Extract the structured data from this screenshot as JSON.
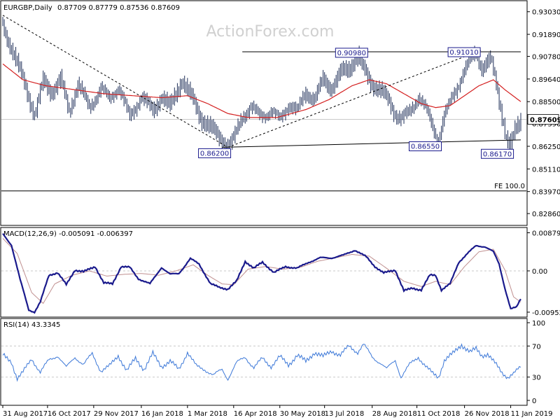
{
  "header": {
    "symbol_text": "EURGBP,Daily",
    "ohlc_text": "0.87709 0.87779 0.87536 0.87609",
    "watermark": "ActionForex.com"
  },
  "chart_data": {
    "type": "line",
    "price_panel": {
      "ylim": [
        0.823,
        0.9355
      ],
      "ticks": [
        "0.93030",
        "0.91890",
        "0.90780",
        "0.89640",
        "0.88500",
        "0.87390",
        "0.86250",
        "0.85110",
        "0.83970",
        "0.82860"
      ],
      "current_price_label": "0.87609",
      "current_price": 0.87609,
      "fe_label": "FE 100.0",
      "fe_level": 0.84,
      "bar_count": 360,
      "close_anchors": [
        [
          0,
          0.923
        ],
        [
          8,
          0.908
        ],
        [
          16,
          0.892
        ],
        [
          22,
          0.878
        ],
        [
          28,
          0.895
        ],
        [
          34,
          0.89
        ],
        [
          40,
          0.896
        ],
        [
          46,
          0.88
        ],
        [
          52,
          0.894
        ],
        [
          60,
          0.882
        ],
        [
          68,
          0.892
        ],
        [
          74,
          0.886
        ],
        [
          80,
          0.893
        ],
        [
          88,
          0.877
        ],
        [
          96,
          0.888
        ],
        [
          104,
          0.88
        ],
        [
          110,
          0.888
        ],
        [
          116,
          0.882
        ],
        [
          124,
          0.896
        ],
        [
          130,
          0.888
        ],
        [
          138,
          0.876
        ],
        [
          146,
          0.87
        ],
        [
          152,
          0.866
        ],
        [
          156,
          0.862
        ],
        [
          160,
          0.866
        ],
        [
          166,
          0.878
        ],
        [
          172,
          0.882
        ],
        [
          178,
          0.878
        ],
        [
          186,
          0.88
        ],
        [
          192,
          0.876
        ],
        [
          198,
          0.884
        ],
        [
          204,
          0.88
        ],
        [
          210,
          0.89
        ],
        [
          216,
          0.886
        ],
        [
          222,
          0.896
        ],
        [
          228,
          0.892
        ],
        [
          234,
          0.899
        ],
        [
          240,
          0.902
        ],
        [
          246,
          0.908
        ],
        [
          250,
          0.901
        ],
        [
          256,
          0.894
        ],
        [
          262,
          0.89
        ],
        [
          268,
          0.885
        ],
        [
          272,
          0.879
        ],
        [
          276,
          0.876
        ],
        [
          282,
          0.88
        ],
        [
          288,
          0.888
        ],
        [
          294,
          0.88
        ],
        [
          298,
          0.872
        ],
        [
          302,
          0.866
        ],
        [
          306,
          0.878
        ],
        [
          312,
          0.888
        ],
        [
          318,
          0.898
        ],
        [
          324,
          0.906
        ],
        [
          328,
          0.91
        ],
        [
          332,
          0.902
        ],
        [
          338,
          0.906
        ],
        [
          342,
          0.894
        ],
        [
          346,
          0.878
        ],
        [
          349,
          0.866
        ],
        [
          352,
          0.862
        ],
        [
          355,
          0.87
        ],
        [
          359,
          0.876
        ]
      ],
      "ma_anchors": [
        [
          0,
          0.904
        ],
        [
          14,
          0.896
        ],
        [
          30,
          0.893
        ],
        [
          50,
          0.891
        ],
        [
          70,
          0.889
        ],
        [
          90,
          0.888
        ],
        [
          110,
          0.887
        ],
        [
          128,
          0.888
        ],
        [
          142,
          0.884
        ],
        [
          156,
          0.879
        ],
        [
          170,
          0.877
        ],
        [
          190,
          0.877
        ],
        [
          210,
          0.881
        ],
        [
          226,
          0.886
        ],
        [
          242,
          0.893
        ],
        [
          254,
          0.896
        ],
        [
          266,
          0.894
        ],
        [
          278,
          0.889
        ],
        [
          290,
          0.884
        ],
        [
          300,
          0.882
        ],
        [
          310,
          0.883
        ],
        [
          320,
          0.888
        ],
        [
          330,
          0.893
        ],
        [
          340,
          0.896
        ],
        [
          348,
          0.891
        ],
        [
          359,
          0.885
        ]
      ],
      "annotations": [
        {
          "label": "0.86200",
          "bar": 156,
          "price": 0.862,
          "anchor": "bottom-left"
        },
        {
          "label": "0.90980",
          "bar": 250,
          "price": 0.9098,
          "anchor": "top-left"
        },
        {
          "label": "0.86550",
          "bar": 302,
          "price": 0.8655,
          "anchor": "bottom-left"
        },
        {
          "label": "0.91010",
          "bar": 328,
          "price": 0.9101,
          "anchor": "top-left"
        },
        {
          "label": "0.86170",
          "bar": 352,
          "price": 0.8617,
          "anchor": "bottom-left"
        }
      ],
      "trendlines": [
        {
          "style": "solid",
          "from": [
            166,
            0.9101
          ],
          "to": [
            359,
            0.9101
          ]
        },
        {
          "style": "solid",
          "from": [
            152,
            0.862
          ],
          "to": [
            359,
            0.8657
          ]
        },
        {
          "style": "dashed",
          "from": [
            0,
            0.9285
          ],
          "to": [
            156,
            0.862
          ]
        },
        {
          "style": "dashed",
          "from": [
            156,
            0.862
          ],
          "to": [
            332,
            0.911
          ]
        }
      ]
    },
    "macd_panel": {
      "label": "MACD(12,26,9) -0.005091 -0.006397",
      "ylim": [
        -0.0105,
        0.0092
      ],
      "ticks": [
        "0.008791",
        "0.00",
        "-0.009524"
      ],
      "main_anchors": [
        [
          0,
          0.0085
        ],
        [
          6,
          0.006
        ],
        [
          12,
          -0.002
        ],
        [
          18,
          -0.009
        ],
        [
          22,
          -0.0095
        ],
        [
          26,
          -0.0072
        ],
        [
          32,
          -0.001
        ],
        [
          38,
          -0.0004
        ],
        [
          44,
          -0.0032
        ],
        [
          50,
          0.0002
        ],
        [
          56,
          -0.0002
        ],
        [
          64,
          0.001
        ],
        [
          70,
          -0.0028
        ],
        [
          76,
          -0.003
        ],
        [
          82,
          0.001
        ],
        [
          88,
          0.0008
        ],
        [
          94,
          -0.0018
        ],
        [
          102,
          -0.003
        ],
        [
          110,
          0.0008
        ],
        [
          116,
          -0.0008
        ],
        [
          122,
          -0.0006
        ],
        [
          130,
          0.0028
        ],
        [
          136,
          0.0016
        ],
        [
          144,
          -0.003
        ],
        [
          150,
          -0.0038
        ],
        [
          156,
          -0.0042
        ],
        [
          162,
          -0.0024
        ],
        [
          168,
          0.0022
        ],
        [
          174,
          0.0006
        ],
        [
          180,
          0.002
        ],
        [
          188,
          -0.0004
        ],
        [
          196,
          0.001
        ],
        [
          204,
          0.0006
        ],
        [
          212,
          0.002
        ],
        [
          220,
          0.003
        ],
        [
          228,
          0.003
        ],
        [
          236,
          0.0036
        ],
        [
          244,
          0.0048
        ],
        [
          252,
          0.0032
        ],
        [
          258,
          0.001
        ],
        [
          264,
          -0.0005
        ],
        [
          272,
          0.0002
        ],
        [
          278,
          -0.0046
        ],
        [
          284,
          -0.004
        ],
        [
          290,
          -0.0044
        ],
        [
          296,
          -0.001
        ],
        [
          300,
          -0.001
        ],
        [
          304,
          -0.0044
        ],
        [
          310,
          -0.003
        ],
        [
          316,
          0.002
        ],
        [
          322,
          0.004
        ],
        [
          328,
          0.0058
        ],
        [
          334,
          0.0056
        ],
        [
          340,
          0.0044
        ],
        [
          344,
          0.0016
        ],
        [
          348,
          -0.004
        ],
        [
          352,
          -0.0088
        ],
        [
          356,
          -0.0084
        ],
        [
          359,
          -0.0064
        ]
      ],
      "signal_anchors": [
        [
          0,
          0.0075
        ],
        [
          10,
          0.004
        ],
        [
          20,
          -0.005
        ],
        [
          28,
          -0.0075
        ],
        [
          36,
          -0.003
        ],
        [
          48,
          -0.001
        ],
        [
          60,
          0.0
        ],
        [
          72,
          -0.0012
        ],
        [
          84,
          -0.0008
        ],
        [
          96,
          -0.0006
        ],
        [
          108,
          -0.001
        ],
        [
          120,
          0.0
        ],
        [
          132,
          0.0014
        ],
        [
          142,
          -0.001
        ],
        [
          152,
          -0.003
        ],
        [
          160,
          -0.0032
        ],
        [
          170,
          0.0004
        ],
        [
          182,
          0.001
        ],
        [
          194,
          0.0004
        ],
        [
          206,
          0.0008
        ],
        [
          218,
          0.0022
        ],
        [
          230,
          0.003
        ],
        [
          242,
          0.0038
        ],
        [
          254,
          0.0034
        ],
        [
          266,
          0.0006
        ],
        [
          278,
          -0.0024
        ],
        [
          290,
          -0.0036
        ],
        [
          300,
          -0.0024
        ],
        [
          310,
          -0.0032
        ],
        [
          320,
          0.001
        ],
        [
          330,
          0.0044
        ],
        [
          340,
          0.005
        ],
        [
          348,
          0.0002
        ],
        [
          354,
          -0.006
        ],
        [
          359,
          -0.0072
        ]
      ]
    },
    "rsi_panel": {
      "label": "RSI(14) 43.3345",
      "ylim": [
        0,
        100
      ],
      "ticks": [
        "100",
        "70",
        "30",
        "0"
      ],
      "levels": [
        70,
        30
      ],
      "anchors": [
        [
          0,
          58
        ],
        [
          6,
          50
        ],
        [
          10,
          28
        ],
        [
          14,
          36
        ],
        [
          20,
          54
        ],
        [
          26,
          36
        ],
        [
          32,
          52
        ],
        [
          38,
          58
        ],
        [
          44,
          42
        ],
        [
          50,
          56
        ],
        [
          56,
          46
        ],
        [
          62,
          60
        ],
        [
          68,
          38
        ],
        [
          74,
          44
        ],
        [
          80,
          58
        ],
        [
          86,
          38
        ],
        [
          92,
          54
        ],
        [
          98,
          40
        ],
        [
          104,
          60
        ],
        [
          110,
          44
        ],
        [
          116,
          50
        ],
        [
          122,
          40
        ],
        [
          128,
          62
        ],
        [
          134,
          44
        ],
        [
          140,
          40
        ],
        [
          146,
          32
        ],
        [
          152,
          40
        ],
        [
          156,
          28
        ],
        [
          162,
          48
        ],
        [
          168,
          56
        ],
        [
          174,
          42
        ],
        [
          180,
          54
        ],
        [
          186,
          44
        ],
        [
          192,
          56
        ],
        [
          198,
          46
        ],
        [
          204,
          58
        ],
        [
          210,
          50
        ],
        [
          216,
          62
        ],
        [
          222,
          56
        ],
        [
          228,
          64
        ],
        [
          234,
          58
        ],
        [
          240,
          70
        ],
        [
          246,
          62
        ],
        [
          250,
          72
        ],
        [
          256,
          56
        ],
        [
          262,
          48
        ],
        [
          266,
          40
        ],
        [
          272,
          52
        ],
        [
          276,
          30
        ],
        [
          282,
          46
        ],
        [
          288,
          56
        ],
        [
          294,
          42
        ],
        [
          298,
          34
        ],
        [
          302,
          30
        ],
        [
          306,
          52
        ],
        [
          312,
          60
        ],
        [
          318,
          72
        ],
        [
          324,
          62
        ],
        [
          328,
          66
        ],
        [
          332,
          58
        ],
        [
          336,
          60
        ],
        [
          340,
          50
        ],
        [
          346,
          36
        ],
        [
          350,
          30
        ],
        [
          354,
          34
        ],
        [
          359,
          43
        ]
      ]
    },
    "x_axis_labels": [
      {
        "label": "31 Aug 2017",
        "bar": 0
      },
      {
        "label": "16 Oct 2017",
        "bar": 31
      },
      {
        "label": "29 Nov 2017",
        "bar": 63
      },
      {
        "label": "16 Jan 2018",
        "bar": 96
      },
      {
        "label": "1 Mar 2018",
        "bar": 128
      },
      {
        "label": "16 Apr 2018",
        "bar": 160
      },
      {
        "label": "30 May 2018",
        "bar": 192
      },
      {
        "label": "13 Jul 2018",
        "bar": 223
      },
      {
        "label": "28 Aug 2018",
        "bar": 256
      },
      {
        "label": "11 Oct 2018",
        "bar": 287
      },
      {
        "label": "26 Nov 2018",
        "bar": 320
      },
      {
        "label": "11 Jan 2019",
        "bar": 352
      }
    ]
  },
  "colors": {
    "price_bar": "#1e2e58",
    "moving_average": "#d42020",
    "macd_main": "#1a1a8c",
    "macd_signal": "#c09090",
    "rsi_line": "#3c78d8",
    "grid_line": "#c8c8c8",
    "trendline": "#000000",
    "annotation_border": "#1a1a8c"
  }
}
